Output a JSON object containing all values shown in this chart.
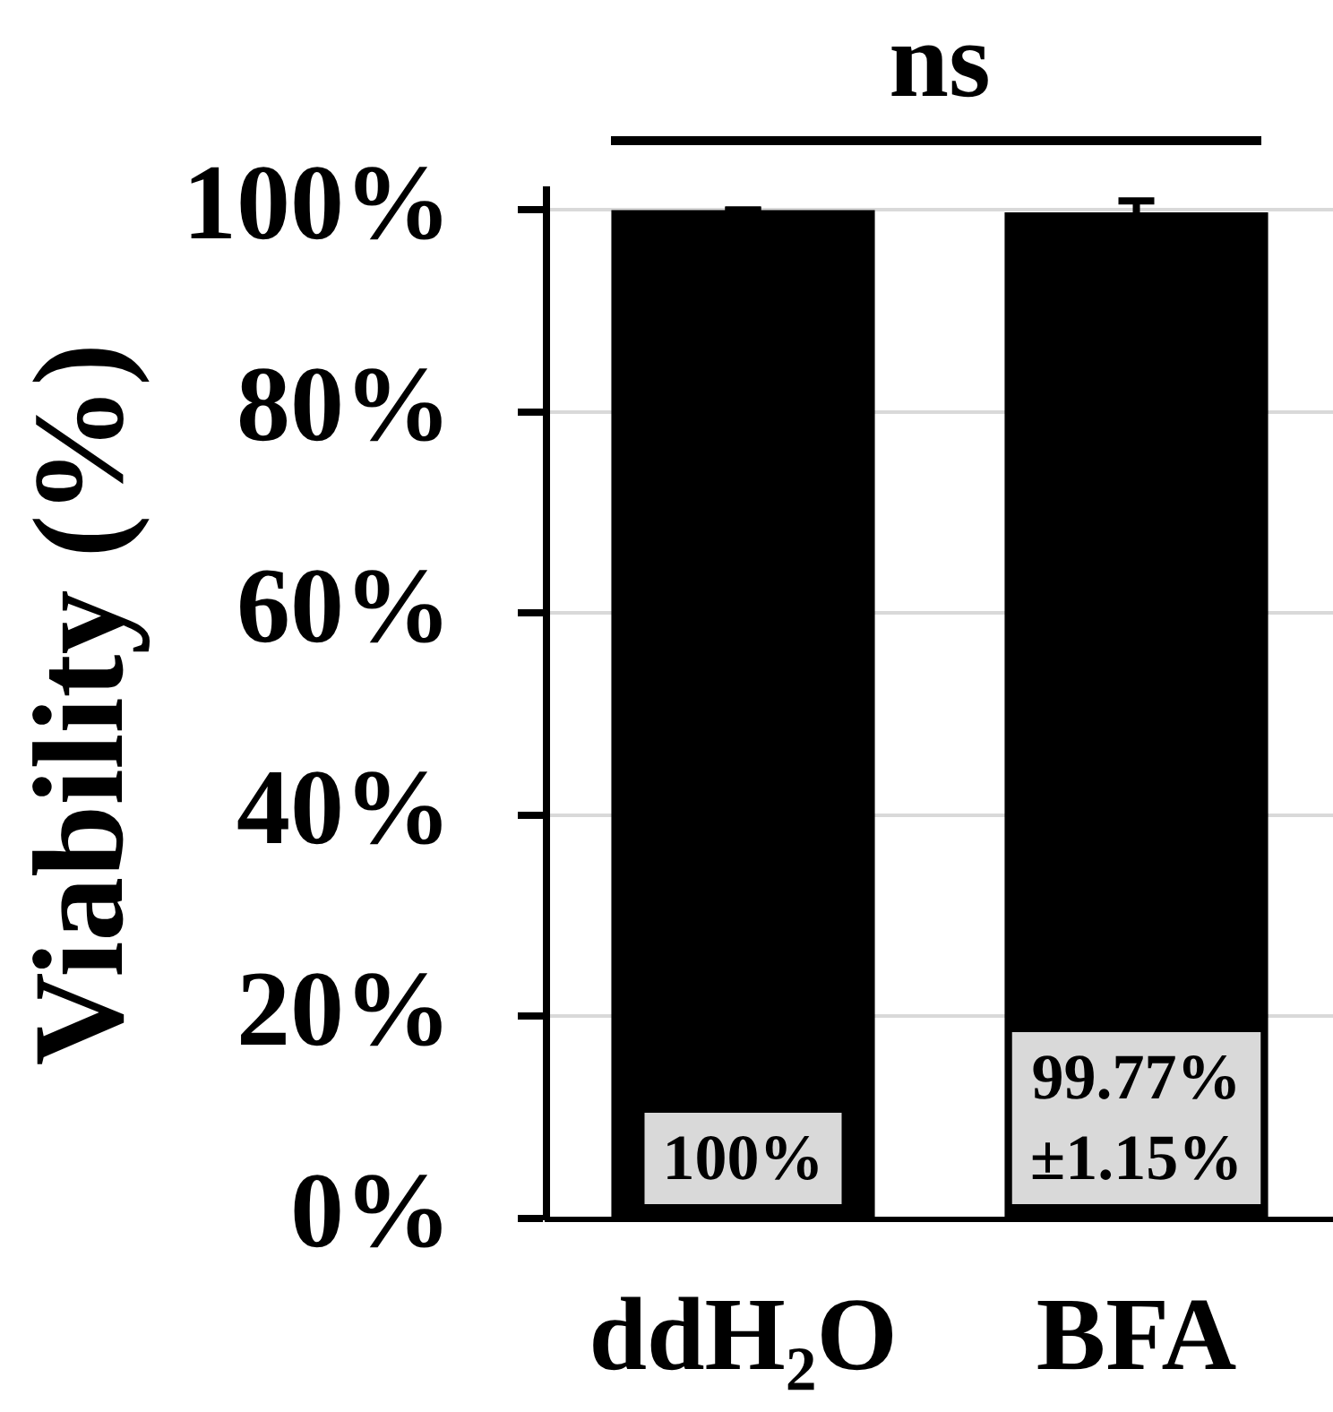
{
  "chart_data": {
    "type": "bar",
    "categories": [
      "ddH₂O",
      "BFA"
    ],
    "values": [
      100,
      99.77
    ],
    "color": "#000000",
    "errors": [
      0,
      1.15
    ],
    "value_labels": [
      "100%",
      "99.77%\n±1.15%"
    ],
    "ylabel": "Viability (%)",
    "ylim": [
      0,
      102
    ],
    "yticks": [
      {
        "value": 0,
        "label": "0%"
      },
      {
        "value": 20,
        "label": "20%"
      },
      {
        "value": 40,
        "label": "40%"
      },
      {
        "value": 60,
        "label": "60%"
      },
      {
        "value": 80,
        "label": "80%"
      },
      {
        "value": 100,
        "label": "100%"
      }
    ],
    "grid": "y",
    "annotations": [
      "ns"
    ]
  }
}
